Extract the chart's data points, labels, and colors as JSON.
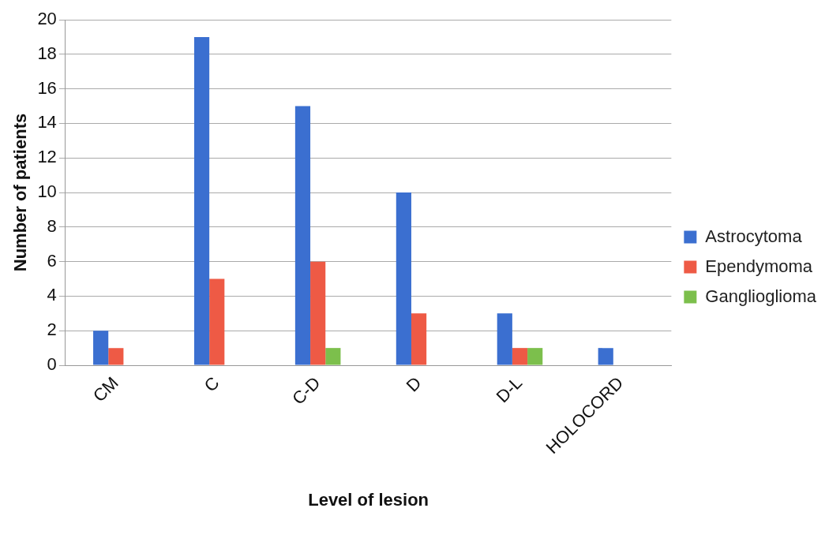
{
  "chart_data": {
    "type": "bar",
    "xlabel": "Level of lesion",
    "ylabel": "Number of patients",
    "categories": [
      "CM",
      "C",
      "C-D",
      "D",
      "D-L",
      "HOLOCORD"
    ],
    "series": [
      {
        "name": "Astrocytoma",
        "color": "#3b6fd0",
        "values": [
          2,
          19,
          15,
          10,
          3,
          1
        ]
      },
      {
        "name": "Ependymoma",
        "color": "#ee5a45",
        "values": [
          1,
          5,
          6,
          3,
          1,
          0
        ]
      },
      {
        "name": "Ganglioglioma",
        "color": "#7cbf4c",
        "values": [
          0,
          0,
          1,
          0,
          1,
          0
        ]
      }
    ],
    "ylim": [
      0,
      20
    ],
    "yticks": [
      0,
      2,
      4,
      6,
      8,
      10,
      12,
      14,
      16,
      18,
      20
    ],
    "grid": "y",
    "legend": "right"
  }
}
